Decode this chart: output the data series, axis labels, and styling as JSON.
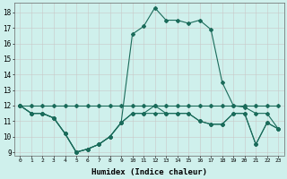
{
  "xlabel": "Humidex (Indice chaleur)",
  "x": [
    0,
    1,
    2,
    3,
    4,
    5,
    6,
    7,
    8,
    9,
    10,
    11,
    12,
    13,
    14,
    15,
    16,
    17,
    18,
    19,
    20,
    21,
    22,
    23
  ],
  "line1_y": [
    12.0,
    12.0,
    12.0,
    12.0,
    12.0,
    12.0,
    12.0,
    12.0,
    12.0,
    12.0,
    12.0,
    12.0,
    12.0,
    12.0,
    12.0,
    12.0,
    12.0,
    12.0,
    12.0,
    12.0,
    12.0,
    12.0,
    12.0,
    12.0
  ],
  "line2_y": [
    12.0,
    11.5,
    11.5,
    11.2,
    10.2,
    9.0,
    9.2,
    9.5,
    10.0,
    10.9,
    11.5,
    11.5,
    11.5,
    11.5,
    11.5,
    11.5,
    11.0,
    10.8,
    10.8,
    11.5,
    11.5,
    9.5,
    10.9,
    10.5
  ],
  "line3_y": [
    12.0,
    11.5,
    11.5,
    11.2,
    10.2,
    9.0,
    9.2,
    9.5,
    10.0,
    10.9,
    16.6,
    17.1,
    18.3,
    17.5,
    17.5,
    17.3,
    17.5,
    16.9,
    13.5,
    12.0,
    11.9,
    11.5,
    11.5,
    10.5
  ],
  "line4_y": [
    12.0,
    11.5,
    11.5,
    11.2,
    10.2,
    9.0,
    9.2,
    9.5,
    10.0,
    10.9,
    11.5,
    11.5,
    12.0,
    11.5,
    11.5,
    11.5,
    11.0,
    10.8,
    10.8,
    11.5,
    11.5,
    9.5,
    10.9,
    10.5
  ],
  "color": "#1a6b5a",
  "bg_color": "#cff0ec",
  "grid_color": "#c8c8c8",
  "ylim": [
    8.8,
    18.6
  ],
  "yticks": [
    9,
    10,
    11,
    12,
    13,
    14,
    15,
    16,
    17,
    18
  ],
  "xtick_labels": [
    "0",
    "1",
    "2",
    "3",
    "4",
    "5",
    "6",
    "7",
    "8",
    "9",
    "10",
    "11",
    "12",
    "13",
    "14",
    "15",
    "16",
    "17",
    "18",
    "19",
    "20",
    "21",
    "22",
    "23"
  ]
}
